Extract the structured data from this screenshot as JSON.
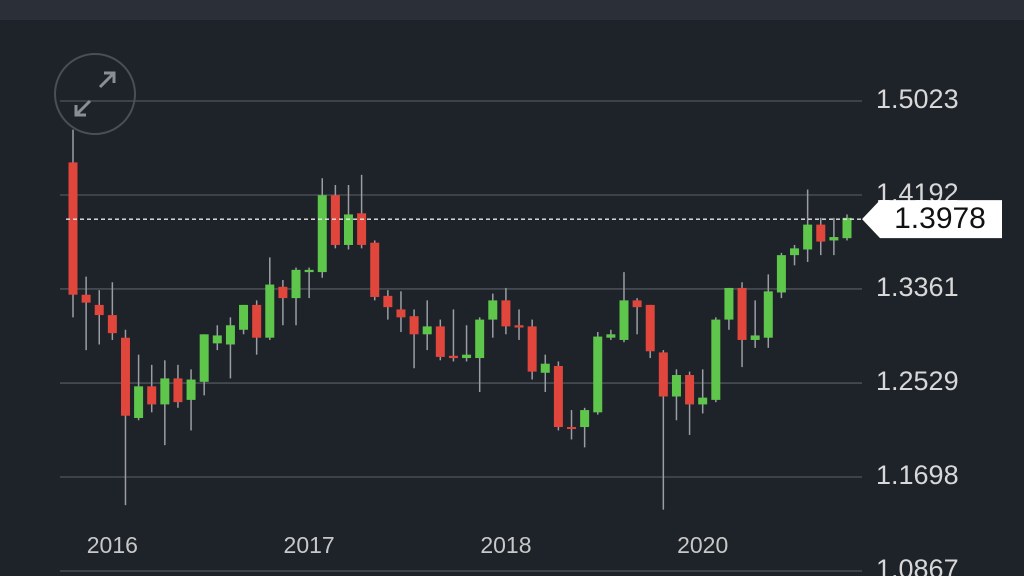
{
  "chart_data": {
    "type": "candlestick",
    "categories": [
      null,
      null,
      null,
      "2016",
      null,
      null,
      null,
      null,
      null,
      null,
      null,
      null,
      null,
      null,
      null,
      null,
      null,
      null,
      "2017",
      null,
      null,
      null,
      null,
      null,
      null,
      null,
      null,
      null,
      null,
      null,
      null,
      null,
      null,
      "2018",
      null,
      null,
      null,
      null,
      null,
      null,
      null,
      null,
      null,
      null,
      null,
      null,
      null,
      null,
      "2020",
      null,
      null,
      null,
      null,
      null,
      null,
      null,
      null,
      null,
      null,
      null
    ],
    "open": [
      1.448,
      1.331,
      1.322,
      1.313,
      1.293,
      1.222,
      1.25,
      1.234,
      1.257,
      1.238,
      1.254,
      1.288,
      1.287,
      1.3,
      1.322,
      1.293,
      1.338,
      1.328,
      1.351,
      1.351,
      1.419,
      1.375,
      1.403,
      1.377,
      1.33,
      1.318,
      1.312,
      1.296,
      1.303,
      1.277,
      1.275,
      1.275,
      1.309,
      1.326,
      1.304,
      1.303,
      1.262,
      1.268,
      1.214,
      1.214,
      1.227,
      1.293,
      1.291,
      1.326,
      1.322,
      1.28,
      1.241,
      1.26,
      1.234,
      1.238,
      1.309,
      1.337,
      1.291,
      1.293,
      1.333,
      1.366,
      1.371,
      1.393,
      1.379,
      1.381
    ],
    "high": [
      1.477,
      1.347,
      1.335,
      1.342,
      1.3,
      1.278,
      1.269,
      1.273,
      1.269,
      1.265,
      1.296,
      1.304,
      1.311,
      1.322,
      1.326,
      1.364,
      1.344,
      1.355,
      1.355,
      1.434,
      1.428,
      1.428,
      1.437,
      1.379,
      1.335,
      1.334,
      1.318,
      1.326,
      1.309,
      1.318,
      1.304,
      1.311,
      1.332,
      1.337,
      1.318,
      1.309,
      1.278,
      1.272,
      1.229,
      1.231,
      1.298,
      1.3,
      1.351,
      1.328,
      1.322,
      1.282,
      1.265,
      1.263,
      1.265,
      1.311,
      1.337,
      1.342,
      1.326,
      1.349,
      1.368,
      1.375,
      1.424,
      1.399,
      1.399,
      1.402
    ],
    "low": [
      1.311,
      1.282,
      1.287,
      1.291,
      1.145,
      1.22,
      1.227,
      1.198,
      1.231,
      1.211,
      1.242,
      1.282,
      1.257,
      1.296,
      1.278,
      1.291,
      1.304,
      1.304,
      1.328,
      1.346,
      1.372,
      1.371,
      1.372,
      1.326,
      1.309,
      1.298,
      1.266,
      1.282,
      1.273,
      1.272,
      1.272,
      1.245,
      1.293,
      1.296,
      1.291,
      1.256,
      1.245,
      1.211,
      1.203,
      1.196,
      1.225,
      1.291,
      1.289,
      1.296,
      1.275,
      1.141,
      1.22,
      1.207,
      1.226,
      1.236,
      1.3,
      1.267,
      1.284,
      1.284,
      1.328,
      1.357,
      1.36,
      1.366,
      1.366,
      1.379
    ],
    "close": [
      1.331,
      1.324,
      1.313,
      1.297,
      1.224,
      1.25,
      1.234,
      1.257,
      1.236,
      1.256,
      1.296,
      1.295,
      1.304,
      1.322,
      1.293,
      1.34,
      1.328,
      1.353,
      1.353,
      1.419,
      1.375,
      1.402,
      1.375,
      1.329,
      1.32,
      1.311,
      1.296,
      1.303,
      1.276,
      1.275,
      1.278,
      1.309,
      1.326,
      1.303,
      1.302,
      1.263,
      1.27,
      1.214,
      1.213,
      1.229,
      1.294,
      1.296,
      1.326,
      1.32,
      1.281,
      1.241,
      1.26,
      1.234,
      1.24,
      1.309,
      1.337,
      1.291,
      1.295,
      1.334,
      1.366,
      1.372,
      1.393,
      1.378,
      1.382,
      1.399
    ],
    "up_color": "#5ec64b",
    "down_color": "#e0463b",
    "last_price": 1.3978,
    "ylim": [
      1.0867,
      1.5023
    ],
    "yticks": [
      1.5023,
      1.4192,
      1.3361,
      1.2529,
      1.1698,
      1.0867
    ],
    "grid": true
  }
}
